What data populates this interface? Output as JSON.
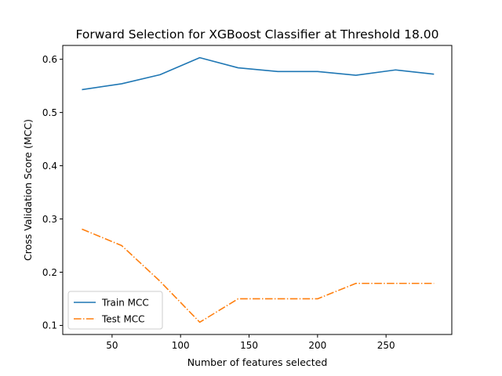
{
  "chart_data": {
    "type": "line",
    "title": "Forward Selection for XGBoost Classifier at Threshold 18.00",
    "xlabel": "Number of features selected",
    "ylabel": "Cross Validation Score (MCC)",
    "xlim": [
      14,
      298
    ],
    "ylim": [
      0.083,
      0.626
    ],
    "xticks": [
      50,
      100,
      150,
      200,
      250
    ],
    "yticks": [
      0.1,
      0.2,
      0.3,
      0.4,
      0.5,
      0.6
    ],
    "grid": false,
    "legend_position": "lower-left",
    "x": [
      28,
      57,
      85,
      114,
      142,
      171,
      200,
      228,
      257,
      285
    ],
    "series": [
      {
        "name": "Train MCC",
        "color": "#1f77b4",
        "style": "solid",
        "values": [
          0.543,
          0.554,
          0.571,
          0.603,
          0.584,
          0.577,
          0.577,
          0.57,
          0.58,
          0.572
        ]
      },
      {
        "name": "Test MCC",
        "color": "#ff7f0e",
        "style": "dashdot",
        "values": [
          0.281,
          0.25,
          0.183,
          0.106,
          0.15,
          0.15,
          0.15,
          0.179,
          0.179,
          0.179
        ]
      }
    ]
  }
}
